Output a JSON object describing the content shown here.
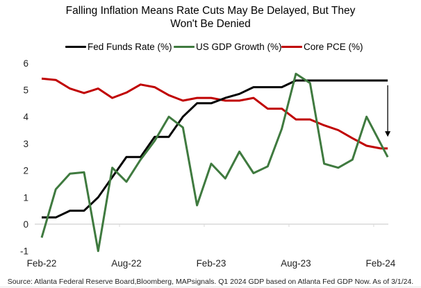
{
  "chart_data": {
    "type": "line",
    "title": "Falling Inflation Means Rate Cuts May Be Delayed, But They Won't Be Denied",
    "title_lines": [
      "Falling Inflation Means Rate Cuts May Be Delayed, But They",
      "Won't Be Denied"
    ],
    "xlabel": "",
    "ylabel": "",
    "ylim": [
      -1,
      6
    ],
    "yticks": [
      -1,
      0,
      1,
      2,
      3,
      4,
      5,
      6
    ],
    "ytick_labels": [
      "-1",
      "0",
      "1",
      "2",
      "3",
      "4",
      "5",
      "6"
    ],
    "x_unit": "months since Feb-22",
    "xlim": [
      0,
      24.5
    ],
    "xticks": [
      0,
      6,
      12,
      18,
      24
    ],
    "xtick_labels": [
      "Feb-22",
      "Aug-22",
      "Feb-23",
      "Aug-23",
      "Feb-24"
    ],
    "grid": false,
    "legend_position": "top",
    "annotations": [
      {
        "type": "arrow",
        "description": "downward arrow from Fed Funds Rate level toward Core PCE at end of series",
        "x": 24.5,
        "y_from": 5.3,
        "y_to": 3.2
      }
    ],
    "x": [
      0,
      1,
      2,
      3,
      4,
      5,
      6,
      7,
      8,
      9,
      10,
      11,
      12,
      13,
      14,
      15,
      16,
      17,
      18,
      19,
      20,
      21,
      22,
      23,
      24,
      24.5
    ],
    "series": [
      {
        "name": "Fed Funds Rate (%)",
        "color": "#000000",
        "x": [
          0,
          1,
          2,
          3,
          4,
          5,
          6,
          7,
          8,
          9,
          10,
          11,
          12,
          13,
          14,
          15,
          16,
          17,
          18,
          19,
          20,
          21,
          22,
          23,
          24,
          24.5
        ],
        "values": [
          0.25,
          0.25,
          0.5,
          0.5,
          1.0,
          1.75,
          2.5,
          2.5,
          3.25,
          3.25,
          4.0,
          4.5,
          4.5,
          4.7,
          4.85,
          5.1,
          5.1,
          5.1,
          5.35,
          5.35,
          5.35,
          5.35,
          5.35,
          5.35,
          5.35,
          5.35
        ]
      },
      {
        "name": "US GDP Growth (%)",
        "color": "#3f7a3f",
        "x": [
          0,
          1,
          2,
          3,
          4,
          5,
          6,
          7,
          8,
          9,
          10,
          11,
          12,
          13,
          14,
          15,
          16,
          17,
          18,
          19,
          20,
          21,
          22,
          23,
          24.5
        ],
        "values": [
          -0.5,
          1.3,
          1.88,
          1.93,
          -1.0,
          2.1,
          1.58,
          2.4,
          3.1,
          4.0,
          3.6,
          0.7,
          2.25,
          1.7,
          2.7,
          1.9,
          2.15,
          3.55,
          5.6,
          5.25,
          2.25,
          2.1,
          2.4,
          4.0,
          2.5
        ]
      },
      {
        "name": "Core PCE (%)",
        "color": "#c00000",
        "x": [
          0,
          1,
          2,
          3,
          4,
          5,
          6,
          7,
          8,
          9,
          10,
          11,
          12,
          13,
          14,
          15,
          16,
          17,
          18,
          19,
          20,
          21,
          22,
          23,
          24,
          24.5
        ],
        "values": [
          5.42,
          5.37,
          5.05,
          4.88,
          5.05,
          4.7,
          4.9,
          5.2,
          5.1,
          4.8,
          4.6,
          4.7,
          4.7,
          4.6,
          4.6,
          4.7,
          4.3,
          4.3,
          3.9,
          3.9,
          3.68,
          3.5,
          3.2,
          2.92,
          2.82,
          2.82
        ]
      }
    ]
  },
  "footer": {
    "source": "Source: Atlanta Federal Reserve Board,Bloomberg, MAPsignals. Q1 2024 GDP based on Atlanta Fed GDP Now. As of 3/1/24."
  }
}
